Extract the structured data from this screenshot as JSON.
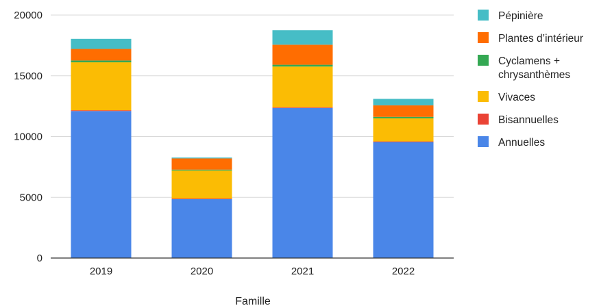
{
  "chart_data": {
    "type": "bar",
    "stacked": true,
    "title": "",
    "xlabel": "Famille",
    "ylabel": "",
    "ylim": [
      0,
      20000
    ],
    "yticks": [
      0,
      5000,
      10000,
      15000,
      20000
    ],
    "grid": true,
    "legend_position": "right",
    "categories": [
      "2019",
      "2020",
      "2021",
      "2022"
    ],
    "series": [
      {
        "name": "Annuelles",
        "color": "#4a86e8",
        "values": [
          12100,
          4850,
          12350,
          9550
        ]
      },
      {
        "name": "Bisannuelles",
        "color": "#ea4335",
        "values": [
          60,
          50,
          60,
          50
        ]
      },
      {
        "name": "Vivaces",
        "color": "#fbbc04",
        "values": [
          3950,
          2300,
          3350,
          1900
        ]
      },
      {
        "name": "Cyclamens +\nchrysanthèmes",
        "color": "#34a853",
        "values": [
          150,
          80,
          150,
          120
        ]
      },
      {
        "name": "Plantes d'intérieur",
        "color": "#ff6d01",
        "values": [
          950,
          920,
          1650,
          950
        ]
      },
      {
        "name": "Pépinière",
        "color": "#46bdc6",
        "values": [
          830,
          70,
          1190,
          530
        ]
      }
    ],
    "legend_order": [
      "Pépinière",
      "Plantes d’intérieur",
      "Cyclamens +\nchrysanthèmes",
      "Vivaces",
      "Bisannuelles",
      "Annuelles"
    ]
  }
}
